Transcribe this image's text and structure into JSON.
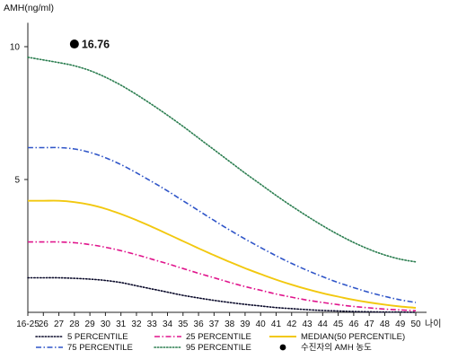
{
  "chart_data": {
    "type": "line",
    "ylabel": "AMH(ng/ml)",
    "xlabel": "나이",
    "y_ticks": [
      5,
      10
    ],
    "ylim": [
      0,
      10.9
    ],
    "categories": [
      "16-25",
      "26",
      "27",
      "28",
      "29",
      "30",
      "31",
      "32",
      "33",
      "34",
      "35",
      "36",
      "37",
      "38",
      "39",
      "40",
      "41",
      "42",
      "43",
      "44",
      "45",
      "46",
      "47",
      "48",
      "49",
      "50"
    ],
    "series": [
      {
        "name": "5 PERCENTILE",
        "color": "#0a0a2a",
        "style": "dotted",
        "values": [
          1.3,
          1.3,
          1.3,
          1.28,
          1.25,
          1.2,
          1.12,
          1.0,
          0.88,
          0.76,
          0.64,
          0.54,
          0.45,
          0.37,
          0.3,
          0.24,
          0.18,
          0.14,
          0.1,
          0.07,
          0.05,
          0.03,
          0.02,
          0.01,
          0.01,
          0.0
        ]
      },
      {
        "name": "25 PERCENTILE",
        "color": "#e0148c",
        "style": "dashdot",
        "values": [
          2.65,
          2.65,
          2.65,
          2.62,
          2.55,
          2.45,
          2.32,
          2.17,
          2.0,
          1.83,
          1.65,
          1.47,
          1.3,
          1.13,
          0.97,
          0.83,
          0.69,
          0.57,
          0.46,
          0.37,
          0.29,
          0.22,
          0.17,
          0.12,
          0.09,
          0.06
        ]
      },
      {
        "name": "MEDIAN(50 PERCENTILE)",
        "color": "#f2c80f",
        "style": "solid",
        "values": [
          4.2,
          4.2,
          4.2,
          4.15,
          4.05,
          3.9,
          3.7,
          3.47,
          3.22,
          2.95,
          2.68,
          2.41,
          2.15,
          1.9,
          1.66,
          1.44,
          1.23,
          1.04,
          0.87,
          0.72,
          0.59,
          0.47,
          0.37,
          0.29,
          0.22,
          0.17
        ]
      },
      {
        "name": "75 PERCENTILE",
        "color": "#2f55c8",
        "style": "dashdot",
        "values": [
          6.2,
          6.2,
          6.2,
          6.15,
          6.02,
          5.82,
          5.56,
          5.25,
          4.92,
          4.57,
          4.2,
          3.83,
          3.46,
          3.1,
          2.76,
          2.44,
          2.13,
          1.84,
          1.58,
          1.34,
          1.12,
          0.93,
          0.75,
          0.6,
          0.47,
          0.37
        ]
      },
      {
        "name": "95 PERCENTILE",
        "color": "#2a7d4f",
        "style": "dotted",
        "values": [
          9.6,
          9.5,
          9.4,
          9.28,
          9.1,
          8.85,
          8.55,
          8.2,
          7.82,
          7.42,
          7.0,
          6.56,
          6.12,
          5.68,
          5.24,
          4.82,
          4.4,
          4.0,
          3.62,
          3.26,
          2.93,
          2.63,
          2.37,
          2.16,
          2.0,
          1.9
        ]
      }
    ],
    "marker": {
      "name": "수진자의 AMH 농도",
      "x": "28",
      "y": 10.1,
      "label": "16.76",
      "color": "#000000"
    },
    "legend_position": "bottom",
    "grid": false
  }
}
